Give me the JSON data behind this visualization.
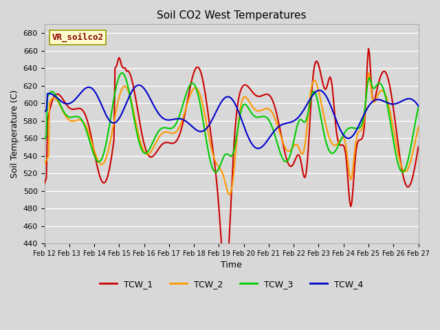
{
  "title": "Soil CO2 West Temperatures",
  "xlabel": "Time",
  "ylabel": "Soil Temperature (C)",
  "ylim": [
    440,
    690
  ],
  "xlim": [
    0,
    360
  ],
  "annotation": "VR_soilco2",
  "background_color": "#d8d8d8",
  "plot_bg_color": "#d8d8d8",
  "grid_color": "#ffffff",
  "colors": {
    "TCW_1": "#cc0000",
    "TCW_2": "#ff9900",
    "TCW_3": "#00cc00",
    "TCW_4": "#0000cc"
  },
  "xtick_labels": [
    "Feb 12",
    "Feb 13",
    "Feb 14",
    "Feb 15",
    "Feb 16",
    "Feb 17",
    "Feb 18",
    "Feb 19",
    "Feb 20",
    "Feb 21",
    "Feb 22",
    "Feb 23",
    "Feb 24",
    "Feb 25",
    "Feb 26",
    "Feb 27"
  ],
  "xtick_positions": [
    0,
    24,
    48,
    72,
    96,
    120,
    144,
    168,
    192,
    216,
    240,
    264,
    288,
    312,
    336,
    360
  ]
}
